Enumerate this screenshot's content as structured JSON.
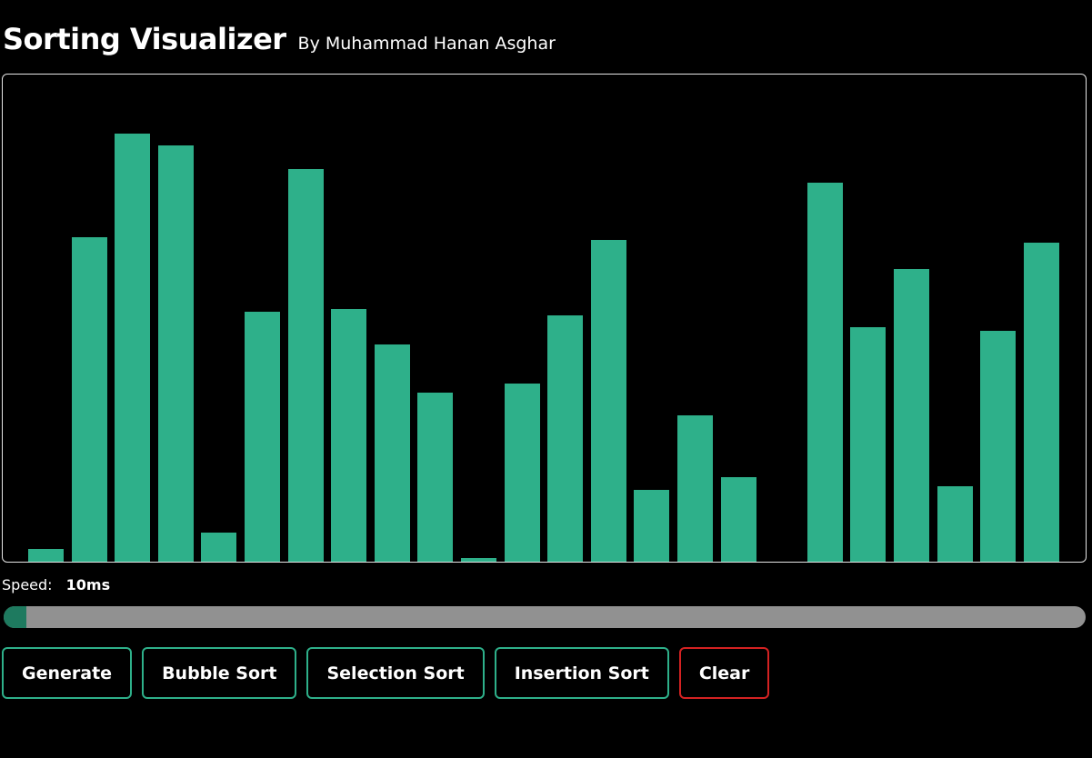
{
  "header": {
    "title": "Sorting Visualizer",
    "subtitle": "By Muhammad Hanan Asghar"
  },
  "visualizer": {
    "bar_color": "#2eb08a",
    "max_value": 536,
    "values": [
      14,
      357,
      471,
      458,
      32,
      275,
      432,
      278,
      239,
      186,
      4,
      196,
      271,
      354,
      79,
      161,
      93,
      0,
      417,
      258,
      322,
      83,
      254,
      351
    ]
  },
  "speed": {
    "label": "Speed:",
    "value_text": "10ms",
    "fraction": 0.021,
    "track_color": "#919191",
    "fill_color": "#1e7a5f"
  },
  "buttons": [
    {
      "name": "generate-button",
      "label": "Generate",
      "color": "#2eb08a"
    },
    {
      "name": "bubble-sort-button",
      "label": "Bubble Sort",
      "color": "#2eb08a"
    },
    {
      "name": "selection-sort-button",
      "label": "Selection Sort",
      "color": "#2eb08a"
    },
    {
      "name": "insertion-sort-button",
      "label": "Insertion Sort",
      "color": "#2eb08a"
    },
    {
      "name": "clear-button",
      "label": "Clear",
      "color": "#d42222"
    }
  ]
}
